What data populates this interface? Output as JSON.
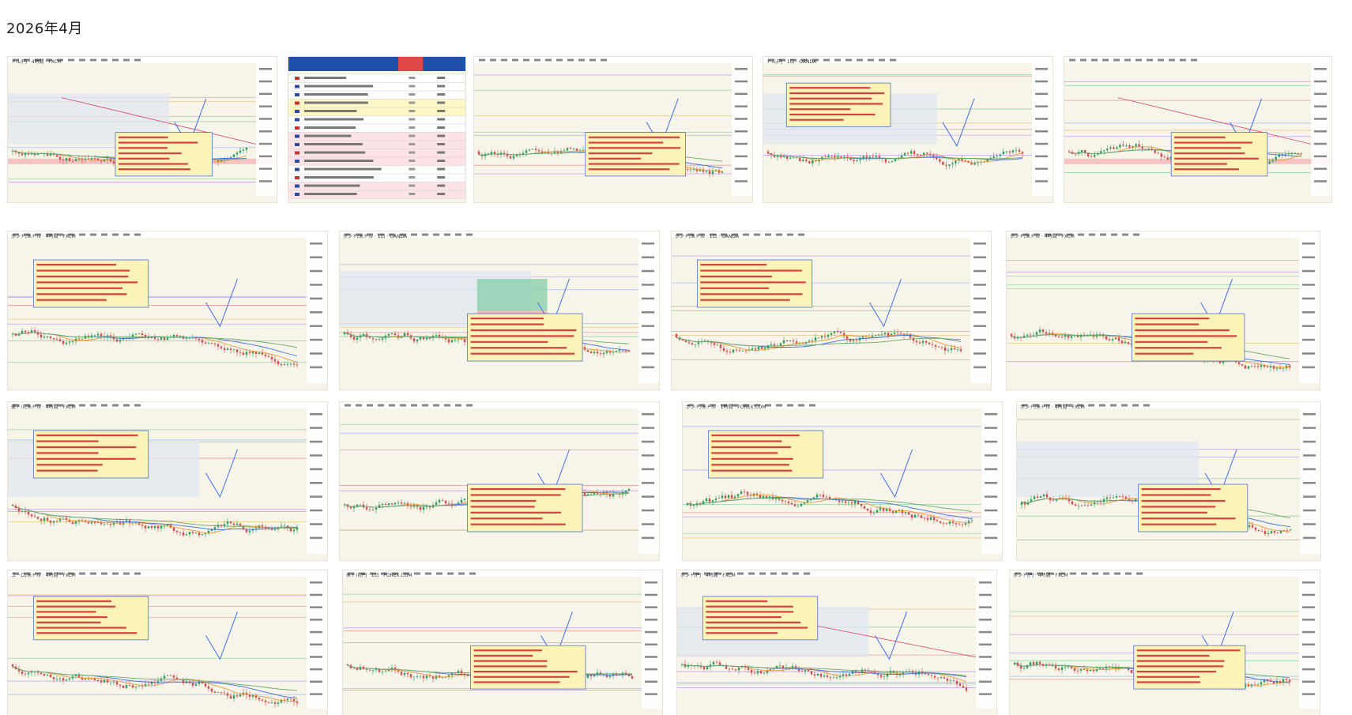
{
  "page": {
    "title": "2026年4月"
  },
  "gallery": {
    "items": [
      {
        "caption": "ドル/円 · 4時間 · FXCM",
        "kind": "chart",
        "price_label": "1.3950"
      },
      {
        "caption": "",
        "kind": "table"
      },
      {
        "caption": "",
        "kind": "chart",
        "price_label": ""
      },
      {
        "caption": "ドル/円 · 1日 · OANDA",
        "kind": "chart",
        "price_label": ""
      },
      {
        "caption": "",
        "kind": "chart",
        "price_label": ""
      },
      {
        "caption": "ポンド/米ドル · 4時間 · FXCM",
        "kind": "chart",
        "price_label": "1.3280"
      },
      {
        "caption": "ポンド/米ドル · 1日 · OANDA",
        "kind": "chart",
        "price_label": ""
      },
      {
        "caption": "ポンド/米ドル · 1日 · OANDA",
        "kind": "chart",
        "price_label": ""
      },
      {
        "caption": "ポンド/米ドル · 4時間 · FXCM",
        "kind": "chart",
        "price_label": ""
      },
      {
        "caption": "豪ドル/米ドル · 4時間 · FXCM",
        "kind": "chart",
        "price_label": ""
      },
      {
        "caption": "",
        "kind": "chart",
        "price_label": ""
      },
      {
        "caption": "ポンド/米ドル · 1時間 · FOREX.COM",
        "kind": "chart",
        "price_label": ""
      },
      {
        "caption": "ポンド/米ドル · 4時間 · FXCM",
        "kind": "chart",
        "price_label": ""
      },
      {
        "caption": "ユーロ/米ドル · 4時間 · FXCM",
        "kind": "chart",
        "price_label": ""
      },
      {
        "caption": "米ドル/円 · 1日 · FOREX.COM",
        "kind": "chart",
        "price_label": ""
      },
      {
        "caption": "ポンド/円 · 4時間 · FXCM",
        "kind": "chart",
        "price_label": ""
      },
      {
        "caption": "ポンド/円 · 4時間 · FXCM",
        "kind": "chart",
        "price_label": ""
      }
    ]
  },
  "colors": {
    "background": "#ffffff",
    "chart_bg": "#f7f4ea",
    "note_bg": "#fbf3b8",
    "note_border": "#3a5fd0",
    "up": "#2e9e5b",
    "down": "#d64a4a",
    "arrow": "#3c6df0"
  }
}
